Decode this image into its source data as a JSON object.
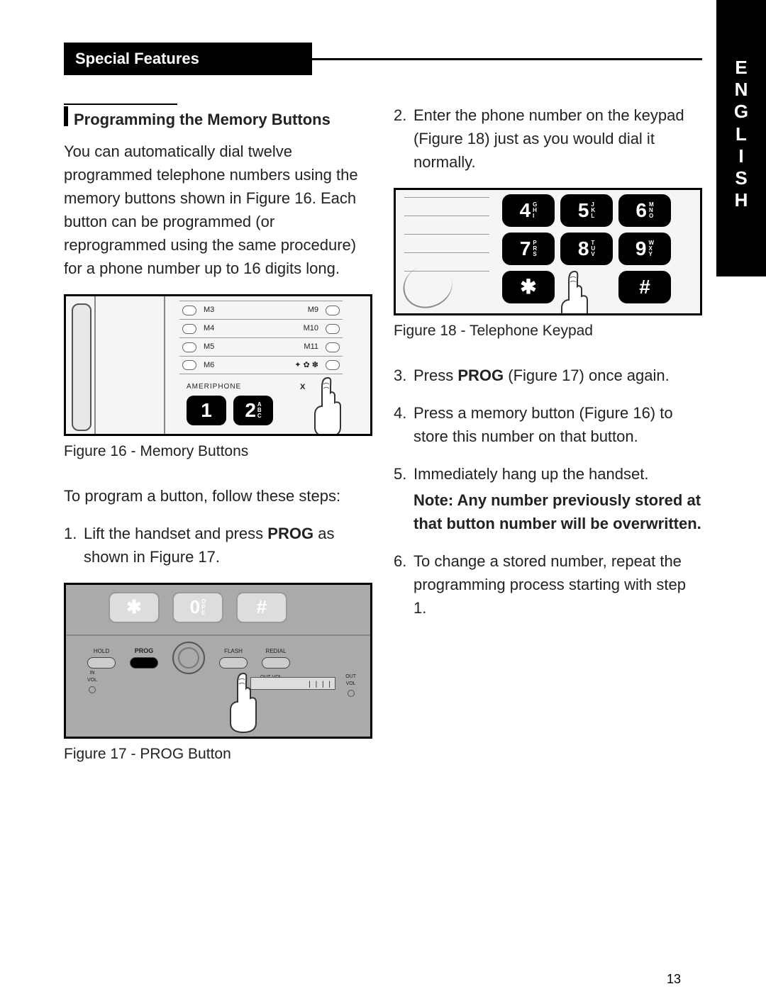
{
  "langTab": [
    "E",
    "N",
    "G",
    "L",
    "I",
    "S",
    "H"
  ],
  "sectionHeader": "Special Features",
  "subheading": "Programming the Memory Buttons",
  "leftCol": {
    "p1": "You can automatically dial twelve programmed telephone numbers using the memory buttons shown in Figure 16. Each button can be programmed (or reprogrammed using the same procedure) for a phone number up to 16 digits long.",
    "fig16Caption": "Figure 16 - Memory Buttons",
    "p2": "To program a button, follow these steps:",
    "step1_num": "1.",
    "step1_a": "Lift the handset and press ",
    "step1_b": "PROG",
    "step1_c": " as shown in Figure 17.",
    "fig17Caption": "Figure 17 - PROG Button"
  },
  "rightCol": {
    "step2_num": "2.",
    "step2": "Enter the phone number on the keypad (Figure 18) just as you would dial it normally.",
    "fig18Caption": "Figure 18 - Telephone Keypad",
    "step3_num": "3.",
    "step3_a": "Press ",
    "step3_b": "PROG",
    "step3_c": " (Figure 17) once again.",
    "step4_num": "4.",
    "step4": "Press a memory button (Figure 16) to store this number on that button.",
    "step5_num": "5.",
    "step5": "Immediately hang up the handset.",
    "note": "Note: Any number previously stored at that button number will be overwritten.",
    "step6_num": "6.",
    "step6": "To change a stored number, repeat the programming process starting with step 1."
  },
  "fig16": {
    "memRows": [
      {
        "l": "M3",
        "r": "M9"
      },
      {
        "l": "M4",
        "r": "M10"
      },
      {
        "l": "M5",
        "r": "M11"
      },
      {
        "l": "M6",
        "r": "✦ ✿ ✽"
      }
    ],
    "brand": "AMERIPHONE",
    "x": "X",
    "keys": [
      {
        "n": "1",
        "letters": []
      },
      {
        "n": "2",
        "letters": [
          "A",
          "B",
          "C"
        ]
      }
    ]
  },
  "fig17": {
    "topKeys": [
      {
        "n": "✱"
      },
      {
        "n": "0",
        "letters": [
          "O",
          "P",
          "E"
        ]
      },
      {
        "n": "#"
      }
    ],
    "smallButtons": [
      "HOLD",
      "PROG",
      "",
      "FLASH",
      "REDIAL"
    ],
    "row2": {
      "left": "IN\nVOL",
      "mid": "OUT VOL\nAMPLIFY",
      "right": "OUT\nVOL"
    }
  },
  "fig18": {
    "rows": [
      [
        {
          "n": "4",
          "l": [
            "G",
            "H",
            "I"
          ]
        },
        {
          "n": "5",
          "l": [
            "J",
            "K",
            "L"
          ]
        },
        {
          "n": "6",
          "l": [
            "M",
            "N",
            "O"
          ]
        }
      ],
      [
        {
          "n": "7",
          "l": [
            "P",
            "R",
            "S"
          ]
        },
        {
          "n": "8",
          "l": [
            "T",
            "U",
            "V"
          ]
        },
        {
          "n": "9",
          "l": [
            "W",
            "X",
            "Y"
          ]
        }
      ],
      [
        {
          "n": "✱",
          "l": []
        },
        {
          "n": "",
          "l": [],
          "hidden": true
        },
        {
          "n": "#",
          "l": []
        }
      ]
    ]
  },
  "pageNumber": "13"
}
